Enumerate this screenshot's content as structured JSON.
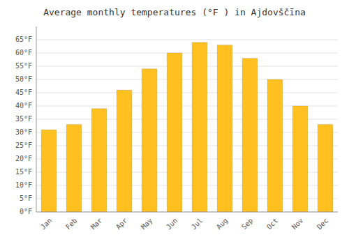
{
  "chart_data": {
    "type": "bar",
    "title": "Average monthly temperatures (°F ) in Ajdovščīna",
    "categories": [
      "Jan",
      "Feb",
      "Mar",
      "Apr",
      "May",
      "Jun",
      "Jul",
      "Aug",
      "Sep",
      "Oct",
      "Nov",
      "Dec"
    ],
    "values": [
      31,
      33,
      39,
      46,
      54,
      60,
      64,
      63,
      58,
      50,
      40,
      33
    ],
    "color": "#FFC020",
    "ylim": [
      0,
      70
    ],
    "yticks": [
      {
        "value": 0,
        "label": "0°F"
      },
      {
        "value": 5,
        "label": "5°F"
      },
      {
        "value": 10,
        "label": "10°F"
      },
      {
        "value": 15,
        "label": "15°F"
      },
      {
        "value": 20,
        "label": "20°F"
      },
      {
        "value": 25,
        "label": "25°F"
      },
      {
        "value": 30,
        "label": "30°F"
      },
      {
        "value": 35,
        "label": "35°F"
      },
      {
        "value": 40,
        "label": "40°F"
      },
      {
        "value": 45,
        "label": "45°F"
      },
      {
        "value": 50,
        "label": "50°F"
      },
      {
        "value": 55,
        "label": "55°F"
      },
      {
        "value": 60,
        "label": "60°F"
      },
      {
        "value": 65,
        "label": "65°F"
      }
    ],
    "grid": true
  }
}
